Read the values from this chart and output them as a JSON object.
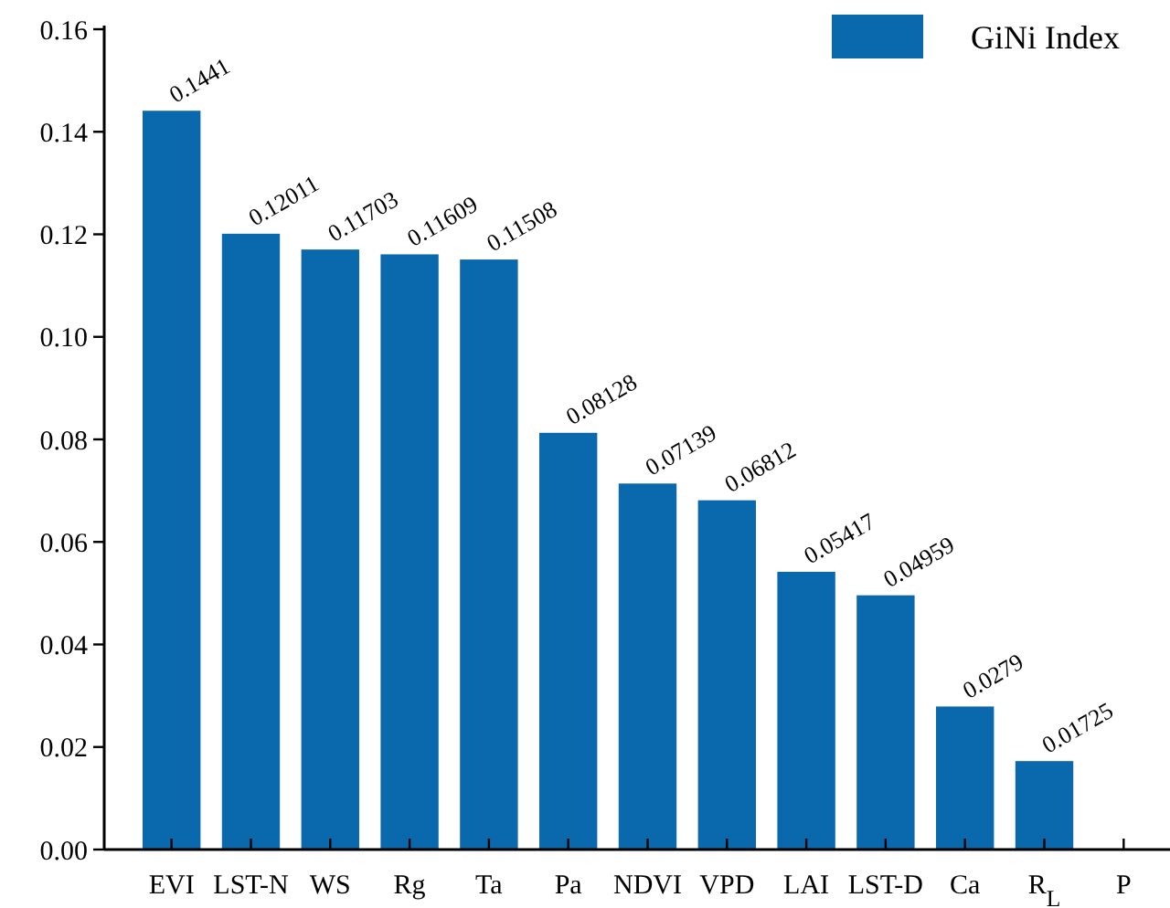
{
  "chart_data": {
    "type": "bar",
    "categories": [
      "EVI",
      "LST-N",
      "WS",
      "Rg",
      "Ta",
      "Pa",
      "NDVI",
      "VPD",
      "LAI",
      "LST-D",
      "Ca",
      "R$_{L}$",
      "P"
    ],
    "series": [
      {
        "name": "GiNi Index",
        "color": "#0a68ad",
        "values": [
          0.1441,
          0.12011,
          0.11703,
          0.11609,
          0.11508,
          0.08128,
          0.07139,
          0.06812,
          0.05417,
          0.04959,
          0.0279,
          0.01725,
          0
        ],
        "value_labels": [
          "0.1441",
          "0.12011",
          "0.11703",
          "0.11609",
          "0.11508",
          "0.08128",
          "0.07139",
          "0.06812",
          "0.05417",
          "0.04959",
          "0.0279",
          "0.01725",
          null
        ]
      }
    ],
    "ylim": [
      0,
      0.16
    ],
    "yticks": [
      {
        "value": 0,
        "label": "0.00"
      },
      {
        "value": 0.02,
        "label": "0.02"
      },
      {
        "value": 0.04,
        "label": "0.04"
      },
      {
        "value": 0.06,
        "label": "0.06"
      },
      {
        "value": 0.08,
        "label": "0.08"
      },
      {
        "value": 0.1,
        "label": "0.10"
      },
      {
        "value": 0.12,
        "label": "0.12"
      },
      {
        "value": 0.14,
        "label": "0.14"
      },
      {
        "value": 0.16,
        "label": "0.16"
      }
    ],
    "legend": "top right",
    "grid": false
  }
}
